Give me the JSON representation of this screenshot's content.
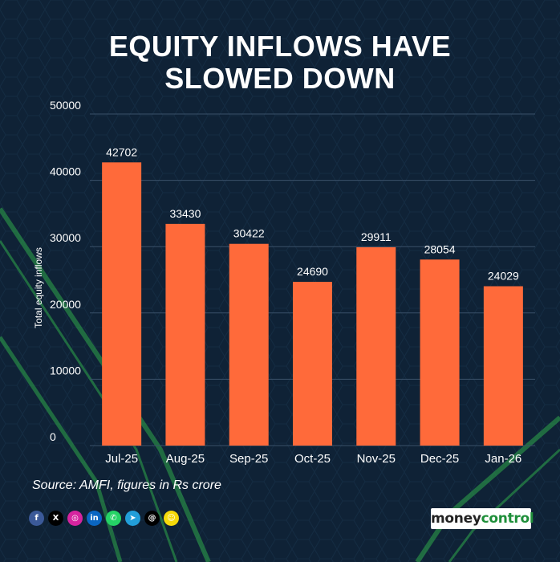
{
  "header": {
    "title_line1": "EQUITY INFLOWS HAVE",
    "title_line2": "SLOWED DOWN"
  },
  "chart_data": {
    "type": "bar",
    "categories": [
      "Jul-25",
      "Aug-25",
      "Sep-25",
      "Oct-25",
      "Nov-25",
      "Dec-25",
      "Jan-26"
    ],
    "values": [
      42702,
      33430,
      30422,
      24690,
      29911,
      28054,
      24029
    ],
    "xlabel": "",
    "ylabel": "Total equity inflows",
    "ylim": [
      0,
      50000
    ],
    "yticks": [
      0,
      10000,
      20000,
      30000,
      40000,
      50000
    ],
    "grid": true,
    "bar_color": "#ff6a3a",
    "data_labels": true
  },
  "footer": {
    "source": "Source: AMFI, figures in Rs crore",
    "socials": [
      {
        "icon": "facebook-icon",
        "glyph": "f",
        "color": "#3b5998"
      },
      {
        "icon": "x-icon",
        "glyph": "X",
        "color": "#000000"
      },
      {
        "icon": "instagram-icon",
        "glyph": "◎",
        "color": "#d6249f"
      },
      {
        "icon": "linkedin-icon",
        "glyph": "in",
        "color": "#0a66c2"
      },
      {
        "icon": "whatsapp-icon",
        "glyph": "✆",
        "color": "#25d366"
      },
      {
        "icon": "telegram-icon",
        "glyph": "➤",
        "color": "#229ed9"
      },
      {
        "icon": "threads-icon",
        "glyph": "@",
        "color": "#000000"
      },
      {
        "icon": "snapchat-icon",
        "glyph": "☺",
        "color": "#f5d90a"
      }
    ],
    "logo_part1": "money",
    "logo_part2": "control"
  }
}
